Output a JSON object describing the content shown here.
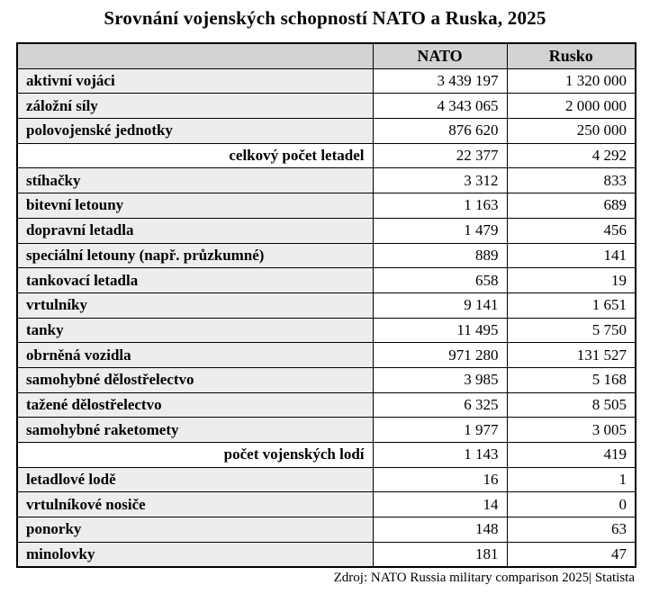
{
  "title": "Srovnání vojenských schopností NATO a Ruska, 2025",
  "source": "Zdroj: NATO Russia military comparison 2025| Statista",
  "colors": {
    "header_bg": "#d3d3d3",
    "label_bg": "#ededed",
    "total_row_bg": "#ffffff",
    "border": "#000000",
    "text": "#000000"
  },
  "table": {
    "corner_header": "",
    "columns": [
      "NATO",
      "Rusko"
    ],
    "rows": [
      {
        "label": "aktivní vojáci",
        "nato": "3 439 197",
        "rusko": "1 320 000",
        "total": false
      },
      {
        "label": "záložní síly",
        "nato": "4 343 065",
        "rusko": "2 000 000",
        "total": false
      },
      {
        "label": "polovojenské jednotky",
        "nato": "876 620",
        "rusko": "250 000",
        "total": false
      },
      {
        "label": "celkový počet letadel",
        "nato": "22 377",
        "rusko": "4 292",
        "total": true
      },
      {
        "label": "stíhačky",
        "nato": "3 312",
        "rusko": "833",
        "total": false
      },
      {
        "label": "bitevní letouny",
        "nato": "1 163",
        "rusko": "689",
        "total": false
      },
      {
        "label": "dopravní letadla",
        "nato": "1 479",
        "rusko": "456",
        "total": false
      },
      {
        "label": "speciální letouny (např. průzkumné)",
        "nato": "889",
        "rusko": "141",
        "total": false
      },
      {
        "label": "tankovací letadla",
        "nato": "658",
        "rusko": "19",
        "total": false
      },
      {
        "label": "vrtulníky",
        "nato": "9 141",
        "rusko": "1 651",
        "total": false
      },
      {
        "label": "tanky",
        "nato": "11 495",
        "rusko": "5 750",
        "total": false
      },
      {
        "label": "obrněná vozidla",
        "nato": "971 280",
        "rusko": "131 527",
        "total": false
      },
      {
        "label": "samohybné dělostřelectvo",
        "nato": "3 985",
        "rusko": "5 168",
        "total": false
      },
      {
        "label": "tažené dělostřelectvo",
        "nato": "6 325",
        "rusko": "8 505",
        "total": false
      },
      {
        "label": "samohybné raketomety",
        "nato": "1 977",
        "rusko": "3 005",
        "total": false
      },
      {
        "label": "počet vojenských lodí",
        "nato": "1 143",
        "rusko": "419",
        "total": true
      },
      {
        "label": "letadlové lodě",
        "nato": "16",
        "rusko": "1",
        "total": false
      },
      {
        "label": "vrtulníkové nosiče",
        "nato": "14",
        "rusko": "0",
        "total": false
      },
      {
        "label": "ponorky",
        "nato": "148",
        "rusko": "63",
        "total": false
      },
      {
        "label": "minolovky",
        "nato": "181",
        "rusko": "47",
        "total": false
      }
    ]
  },
  "chart_data": {
    "type": "table",
    "title": "Srovnání vojenských schopností NATO a Ruska, 2025",
    "columns": [
      "NATO",
      "Rusko"
    ],
    "rows": [
      {
        "label": "aktivní vojáci",
        "NATO": 3439197,
        "Rusko": 1320000,
        "group_total": false
      },
      {
        "label": "záložní síly",
        "NATO": 4343065,
        "Rusko": 2000000,
        "group_total": false
      },
      {
        "label": "polovojenské jednotky",
        "NATO": 876620,
        "Rusko": 250000,
        "group_total": false
      },
      {
        "label": "celkový počet letadel",
        "NATO": 22377,
        "Rusko": 4292,
        "group_total": true
      },
      {
        "label": "stíhačky",
        "NATO": 3312,
        "Rusko": 833,
        "group_total": false
      },
      {
        "label": "bitevní letouny",
        "NATO": 1163,
        "Rusko": 689,
        "group_total": false
      },
      {
        "label": "dopravní letadla",
        "NATO": 1479,
        "Rusko": 456,
        "group_total": false
      },
      {
        "label": "speciální letouny (např. průzkumné)",
        "NATO": 889,
        "Rusko": 141,
        "group_total": false
      },
      {
        "label": "tankovací letadla",
        "NATO": 658,
        "Rusko": 19,
        "group_total": false
      },
      {
        "label": "vrtulníky",
        "NATO": 9141,
        "Rusko": 1651,
        "group_total": false
      },
      {
        "label": "tanky",
        "NATO": 11495,
        "Rusko": 5750,
        "group_total": false
      },
      {
        "label": "obrněná vozidla",
        "NATO": 971280,
        "Rusko": 131527,
        "group_total": false
      },
      {
        "label": "samohybné dělostřelectvo",
        "NATO": 3985,
        "Rusko": 5168,
        "group_total": false
      },
      {
        "label": "tažené dělostřelectvo",
        "NATO": 6325,
        "Rusko": 8505,
        "group_total": false
      },
      {
        "label": "samohybné raketomety",
        "NATO": 1977,
        "Rusko": 3005,
        "group_total": false
      },
      {
        "label": "počet vojenských lodí",
        "NATO": 1143,
        "Rusko": 419,
        "group_total": true
      },
      {
        "label": "letadlové lodě",
        "NATO": 16,
        "Rusko": 1,
        "group_total": false
      },
      {
        "label": "vrtulníkové nosiče",
        "NATO": 14,
        "Rusko": 0,
        "group_total": false
      },
      {
        "label": "ponorky",
        "NATO": 148,
        "Rusko": 63,
        "group_total": false
      },
      {
        "label": "minolovky",
        "NATO": 181,
        "Rusko": 47,
        "group_total": false
      }
    ],
    "source": "Zdroj: NATO Russia military comparison 2025| Statista"
  }
}
